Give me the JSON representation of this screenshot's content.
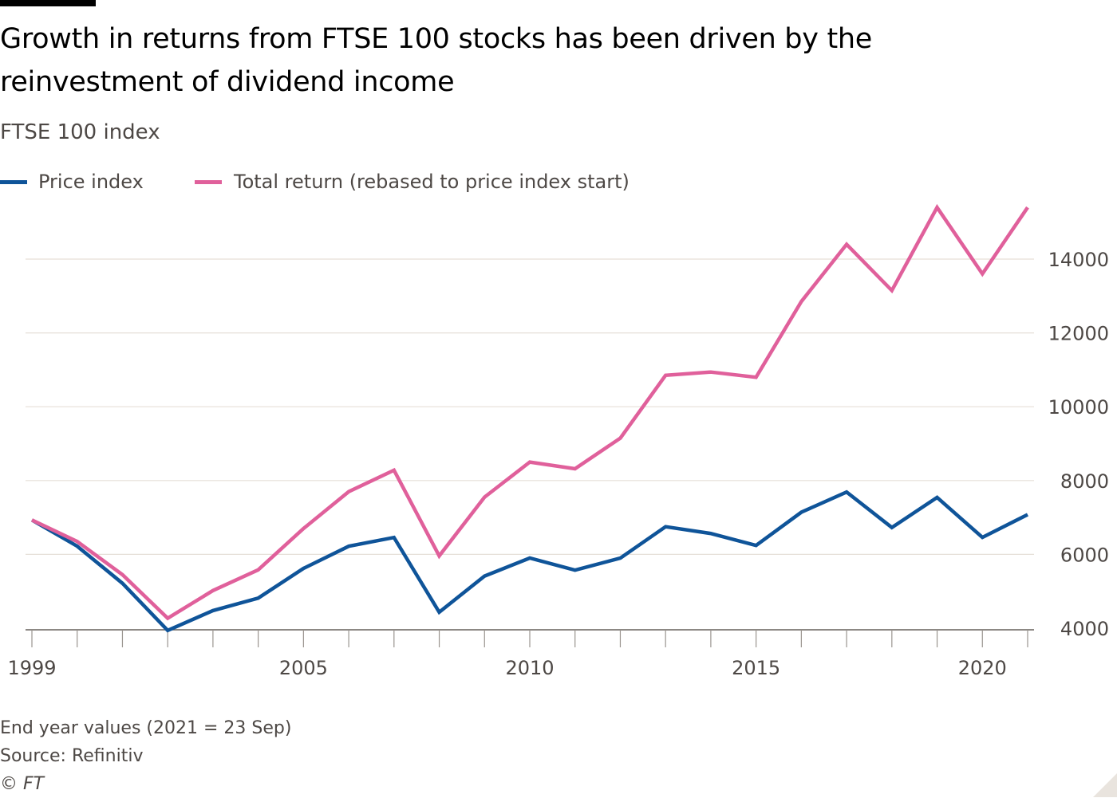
{
  "title": "Growth in returns from FTSE 100 stocks has been driven by the reinvestment of dividend income",
  "subtitle": "FTSE 100 index",
  "legend": [
    {
      "name": "Price index",
      "color": "#0f5499"
    },
    {
      "name": "Total return (rebased to price index start)",
      "color": "#e0609b"
    }
  ],
  "footer": {
    "note": "End year values (2021 = 23 Sep)",
    "source": "Source: Refinitiv",
    "copyright": "© FT"
  },
  "chart_data": {
    "type": "line",
    "x": [
      1999,
      2000,
      2001,
      2002,
      2003,
      2004,
      2005,
      2006,
      2007,
      2008,
      2009,
      2010,
      2011,
      2012,
      2013,
      2014,
      2015,
      2016,
      2017,
      2018,
      2019,
      2020,
      2021
    ],
    "x_tick_labels": [
      1999,
      2005,
      2010,
      2015,
      2020
    ],
    "y_tick_labels": [
      4000,
      6000,
      8000,
      10000,
      12000,
      14000
    ],
    "ylim": [
      3950,
      15500
    ],
    "xlim": [
      1999,
      2021
    ],
    "grid": true,
    "y_axis_side": "right",
    "legend_position": "top-left",
    "series": [
      {
        "name": "Price index",
        "color": "#0f5499",
        "values": [
          6930,
          6222,
          5217,
          3940,
          4477,
          4814,
          5619,
          6221,
          6457,
          4434,
          5413,
          5900,
          5572,
          5898,
          6749,
          6566,
          6242,
          7143,
          7688,
          6728,
          7542,
          6461,
          7078
        ]
      },
      {
        "name": "Total return (rebased to price index start)",
        "color": "#e0609b",
        "values": [
          6930,
          6350,
          5450,
          4270,
          5020,
          5580,
          6700,
          7700,
          8280,
          5960,
          7550,
          8500,
          8320,
          9150,
          10850,
          10940,
          10800,
          12850,
          14400,
          13150,
          15400,
          13600,
          15400
        ]
      }
    ]
  }
}
